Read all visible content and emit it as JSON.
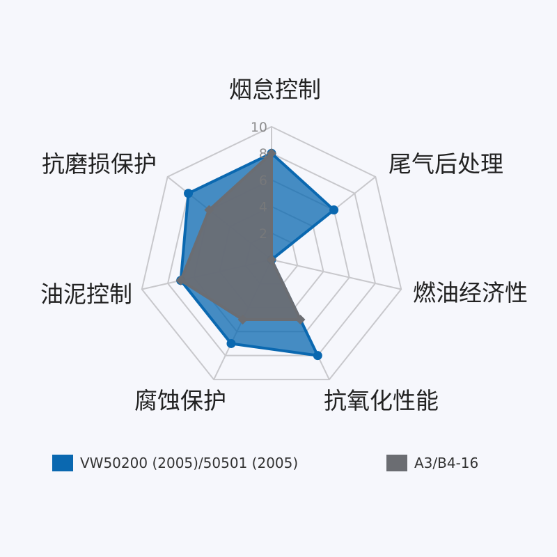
{
  "chart_data": {
    "type": "radar",
    "categories": [
      "烟怠控制",
      "尾气后处理",
      "燃油经济性",
      "抗氧化性能",
      "腐蚀保护",
      "油泥控制",
      "抗磨损保护"
    ],
    "ticks": [
      "2",
      "4",
      "6",
      "8",
      "10"
    ],
    "range": [
      0,
      10
    ],
    "grid": true,
    "legend_placement": "bottom",
    "series": [
      {
        "name": "VW50200 (2005)/50501 (2005)",
        "values": [
          8,
          6,
          0,
          8,
          7,
          7,
          8
        ],
        "color": "#0a68b0"
      },
      {
        "name": "A3/B4-16",
        "values": [
          8,
          0,
          0,
          5,
          5,
          7,
          6
        ],
        "color": "#6b6d72"
      }
    ]
  }
}
